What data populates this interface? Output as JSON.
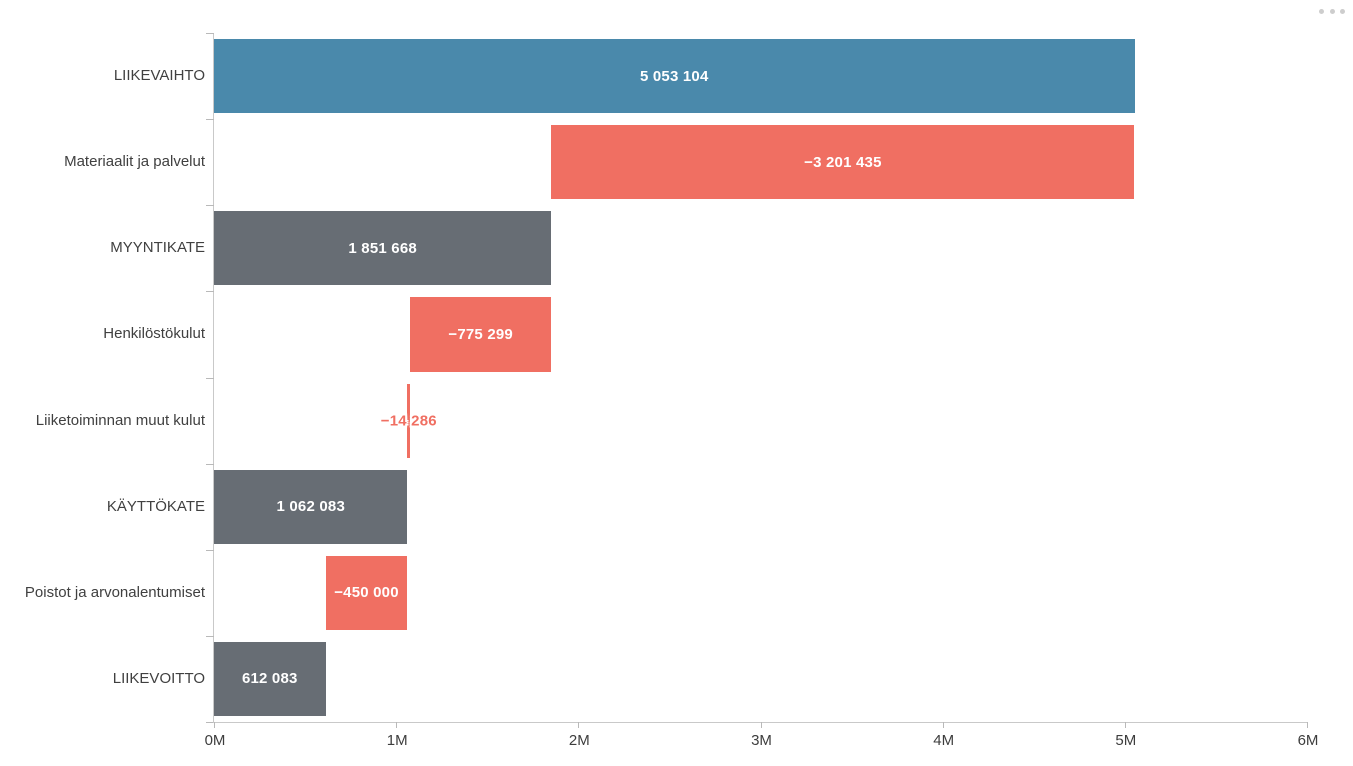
{
  "menu": {
    "icon": "ellipsis-icon"
  },
  "chart_data": {
    "type": "bar",
    "subtype": "waterfall",
    "orientation": "horizontal",
    "title": "",
    "grid": false,
    "legend_position": "none",
    "categories": [
      "LIIKEVAIHTO",
      "Materiaalit ja palvelut",
      "MYYNTIKATE",
      "Henkilöstökulut",
      "Liiketoiminnan muut kulut",
      "KÄYTTÖKATE",
      "Poistot ja arvonalentumiset",
      "LIIKEVOITTO"
    ],
    "rows": [
      {
        "category": "LIIKEVAIHTO",
        "value": 5053104,
        "value_label": "5 053 104",
        "start": 0,
        "end": 5053104,
        "color": "blue",
        "label_placement": "inside"
      },
      {
        "category": "Materiaalit ja palvelut",
        "value": -3201435,
        "value_label": "−3 201 435",
        "start": 1851669,
        "end": 5053104,
        "color": "red",
        "label_placement": "inside"
      },
      {
        "category": "MYYNTIKATE",
        "value": 1851668,
        "value_label": "1 851 668",
        "start": 0,
        "end": 1851668,
        "color": "gray",
        "label_placement": "inside"
      },
      {
        "category": "Henkilöstökulut",
        "value": -775299,
        "value_label": "−775 299",
        "start": 1076369,
        "end": 1851668,
        "color": "red",
        "label_placement": "inside"
      },
      {
        "category": "Liiketoiminnan muut kulut",
        "value": -14286,
        "value_label": "−14 286",
        "start": 1062083,
        "end": 1076369,
        "color": "red",
        "label_placement": "overlay-outline"
      },
      {
        "category": "KÄYTTÖKATE",
        "value": 1062083,
        "value_label": "1 062 083",
        "start": 0,
        "end": 1062083,
        "color": "gray",
        "label_placement": "inside"
      },
      {
        "category": "Poistot ja arvonalentumiset",
        "value": -450000,
        "value_label": "−450 000",
        "start": 612083,
        "end": 1062083,
        "color": "red",
        "label_placement": "inside"
      },
      {
        "category": "LIIKEVOITTO",
        "value": 612083,
        "value_label": "612 083",
        "start": 0,
        "end": 612083,
        "color": "gray",
        "label_placement": "inside"
      }
    ],
    "x_axis": {
      "min": 0,
      "max": 6000000,
      "tick_values": [
        0,
        1000000,
        2000000,
        3000000,
        4000000,
        5000000,
        6000000
      ],
      "tick_labels": [
        "0M",
        "1M",
        "2M",
        "3M",
        "4M",
        "5M",
        "6M"
      ]
    },
    "colors": {
      "blue": "#4a89ab",
      "red": "#f06f62",
      "gray": "#676d74",
      "axis": "#c9c9c9",
      "tick_label": "#3d3d3d",
      "category_label": "#404040",
      "value_label": "#ffffff"
    }
  }
}
